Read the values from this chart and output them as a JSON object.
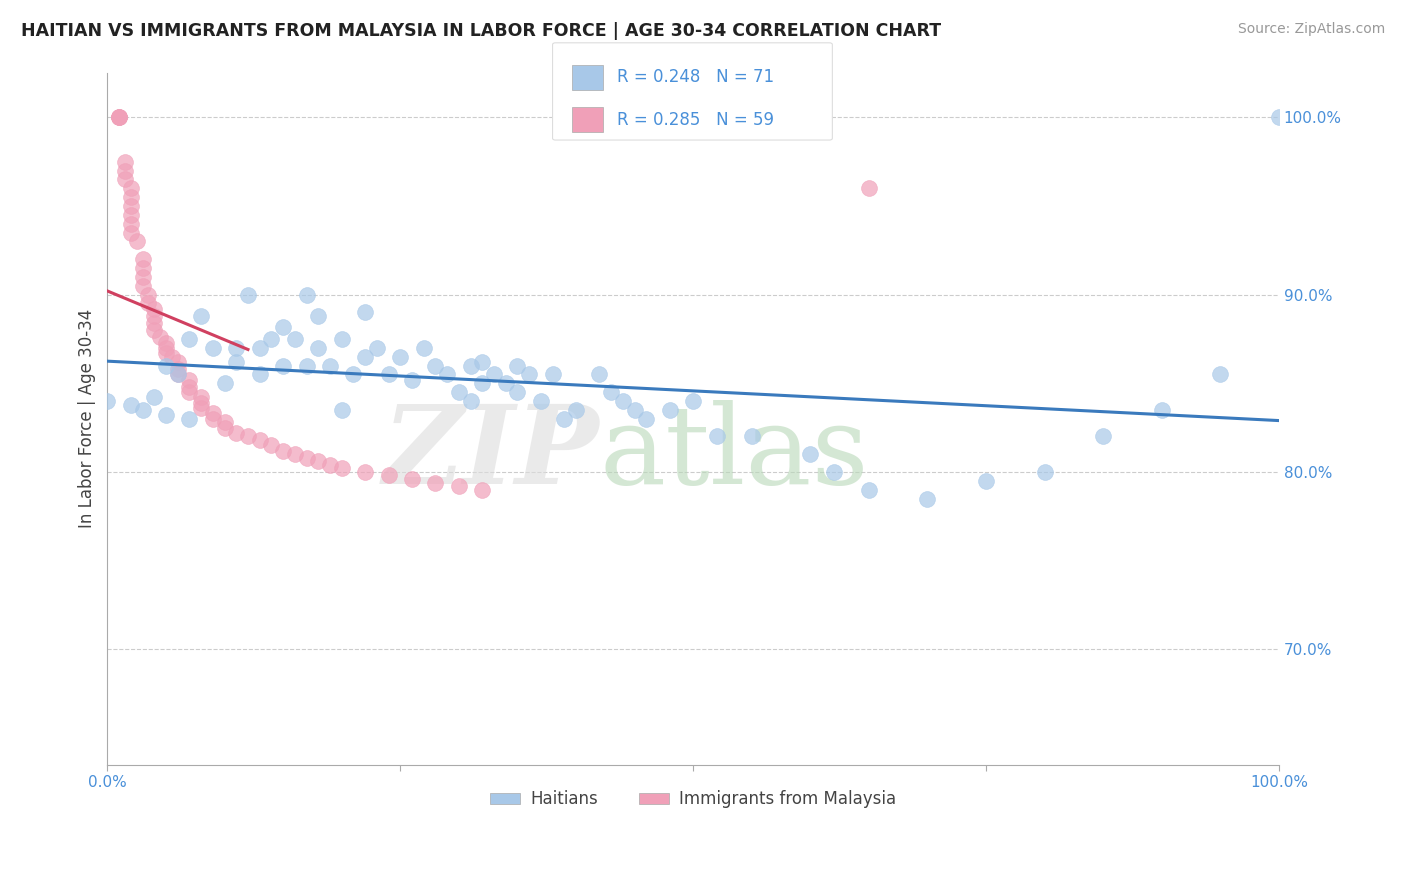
{
  "title": "HAITIAN VS IMMIGRANTS FROM MALAYSIA IN LABOR FORCE | AGE 30-34 CORRELATION CHART",
  "source": "Source: ZipAtlas.com",
  "ylabel": "In Labor Force | Age 30-34",
  "xlim": [
    0.0,
    1.0
  ],
  "ylim": [
    0.635,
    1.025
  ],
  "y_ticks_right": [
    0.7,
    0.8,
    0.9,
    1.0
  ],
  "y_tick_labels_right": [
    "70.0%",
    "80.0%",
    "90.0%",
    "100.0%"
  ],
  "x_ticks": [
    0.0,
    0.25,
    0.5,
    0.75,
    1.0
  ],
  "x_tick_labels": [
    "0.0%",
    "",
    "",
    "",
    "100.0%"
  ],
  "legend_R_blue": "R = 0.248",
  "legend_N_blue": "N = 71",
  "legend_R_pink": "R = 0.285",
  "legend_N_pink": "N = 59",
  "blue_color": "#A8C8E8",
  "pink_color": "#F0A0B8",
  "trendline_blue": "#3A7ABD",
  "trendline_pink": "#D04060",
  "blue_scatter_x": [
    0.0,
    0.02,
    0.03,
    0.04,
    0.05,
    0.05,
    0.06,
    0.07,
    0.07,
    0.08,
    0.09,
    0.1,
    0.11,
    0.11,
    0.12,
    0.13,
    0.13,
    0.14,
    0.15,
    0.15,
    0.16,
    0.17,
    0.17,
    0.18,
    0.18,
    0.19,
    0.2,
    0.2,
    0.21,
    0.22,
    0.22,
    0.23,
    0.24,
    0.25,
    0.26,
    0.27,
    0.28,
    0.29,
    0.3,
    0.31,
    0.31,
    0.32,
    0.32,
    0.33,
    0.34,
    0.35,
    0.35,
    0.36,
    0.37,
    0.38,
    0.39,
    0.4,
    0.42,
    0.43,
    0.44,
    0.45,
    0.46,
    0.48,
    0.5,
    0.52,
    0.55,
    0.6,
    0.62,
    0.65,
    0.7,
    0.75,
    0.8,
    0.85,
    0.9,
    0.95,
    1.0
  ],
  "blue_scatter_y": [
    0.84,
    0.838,
    0.835,
    0.842,
    0.86,
    0.832,
    0.855,
    0.875,
    0.83,
    0.888,
    0.87,
    0.85,
    0.87,
    0.862,
    0.9,
    0.87,
    0.855,
    0.875,
    0.86,
    0.882,
    0.875,
    0.9,
    0.86,
    0.888,
    0.87,
    0.86,
    0.875,
    0.835,
    0.855,
    0.89,
    0.865,
    0.87,
    0.855,
    0.865,
    0.852,
    0.87,
    0.86,
    0.855,
    0.845,
    0.86,
    0.84,
    0.862,
    0.85,
    0.855,
    0.85,
    0.86,
    0.845,
    0.855,
    0.84,
    0.855,
    0.83,
    0.835,
    0.855,
    0.845,
    0.84,
    0.835,
    0.83,
    0.835,
    0.84,
    0.82,
    0.82,
    0.81,
    0.8,
    0.79,
    0.785,
    0.795,
    0.8,
    0.82,
    0.835,
    0.855,
    1.0
  ],
  "pink_scatter_x": [
    0.01,
    0.01,
    0.01,
    0.01,
    0.015,
    0.015,
    0.015,
    0.02,
    0.02,
    0.02,
    0.02,
    0.02,
    0.02,
    0.025,
    0.03,
    0.03,
    0.03,
    0.03,
    0.035,
    0.035,
    0.04,
    0.04,
    0.04,
    0.04,
    0.045,
    0.05,
    0.05,
    0.05,
    0.055,
    0.06,
    0.06,
    0.06,
    0.07,
    0.07,
    0.07,
    0.08,
    0.08,
    0.08,
    0.09,
    0.09,
    0.1,
    0.1,
    0.11,
    0.12,
    0.13,
    0.14,
    0.15,
    0.16,
    0.17,
    0.18,
    0.19,
    0.2,
    0.22,
    0.24,
    0.26,
    0.28,
    0.3,
    0.32,
    0.65
  ],
  "pink_scatter_y": [
    1.0,
    1.0,
    1.0,
    1.0,
    0.975,
    0.97,
    0.965,
    0.96,
    0.955,
    0.95,
    0.945,
    0.94,
    0.935,
    0.93,
    0.92,
    0.915,
    0.91,
    0.905,
    0.9,
    0.895,
    0.892,
    0.888,
    0.884,
    0.88,
    0.876,
    0.873,
    0.87,
    0.867,
    0.865,
    0.862,
    0.858,
    0.855,
    0.852,
    0.848,
    0.845,
    0.842,
    0.839,
    0.836,
    0.833,
    0.83,
    0.828,
    0.825,
    0.822,
    0.82,
    0.818,
    0.815,
    0.812,
    0.81,
    0.808,
    0.806,
    0.804,
    0.802,
    0.8,
    0.798,
    0.796,
    0.794,
    0.792,
    0.79,
    0.96
  ]
}
